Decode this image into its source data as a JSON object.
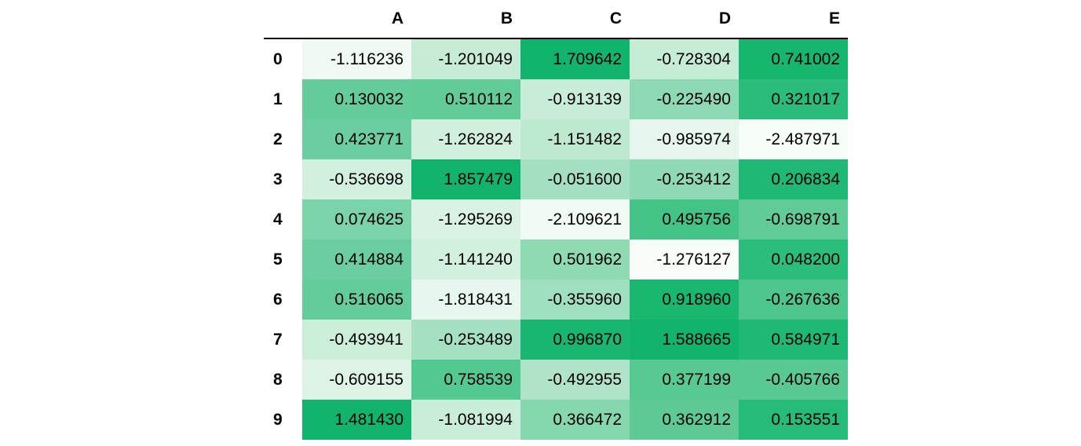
{
  "table": {
    "columns": [
      "A",
      "B",
      "C",
      "D",
      "E"
    ],
    "index": [
      "0",
      "1",
      "2",
      "3",
      "4",
      "5",
      "6",
      "7",
      "8",
      "9"
    ],
    "rows": [
      [
        "-1.116236",
        "-1.201049",
        "1.709642",
        "-0.728304",
        "0.741002"
      ],
      [
        "0.130032",
        "0.510112",
        "-0.913139",
        "-0.225490",
        "0.321017"
      ],
      [
        "0.423771",
        "-1.262824",
        "-1.151482",
        "-0.985974",
        "-2.487971"
      ],
      [
        "-0.536698",
        "1.857479",
        "-0.051600",
        "-0.253412",
        "0.206834"
      ],
      [
        "0.074625",
        "-1.295269",
        "-2.109621",
        "0.495756",
        "-0.698791"
      ],
      [
        "0.414884",
        "-1.141240",
        "0.501962",
        "-1.276127",
        "0.048200"
      ],
      [
        "0.516065",
        "-1.818431",
        "-0.355960",
        "0.918960",
        "-0.267636"
      ],
      [
        "-0.493941",
        "-0.253489",
        "0.996870",
        "1.588665",
        "0.584971"
      ],
      [
        "-0.609155",
        "0.758539",
        "-0.492955",
        "0.377199",
        "-0.405766"
      ],
      [
        "1.481430",
        "-1.081994",
        "0.366472",
        "0.362912",
        "0.153551"
      ]
    ],
    "cell_colors": [
      [
        "#f0f9f3",
        "#c6ecd6",
        "#12b46d",
        "#c5ecd5",
        "#17b66f"
      ],
      [
        "#63cc9a",
        "#62cc99",
        "#c7ecd7",
        "#8dd9b3",
        "#29bc7b"
      ],
      [
        "#6acea0",
        "#d0efdd",
        "#bde9cf",
        "#e6f6ec",
        "#f6fcf8"
      ],
      [
        "#d1f0de",
        "#12b46d",
        "#a3e0c1",
        "#8fdab5",
        "#1fb975"
      ],
      [
        "#7ad3a9",
        "#daf2e4",
        "#f1faf4",
        "#43c385",
        "#61cb98"
      ],
      [
        "#6acea0",
        "#d2f0de",
        "#8ddab3",
        "#f7fcf9",
        "#2abd7b"
      ],
      [
        "#63cc9a",
        "#e7f7ed",
        "#9edfbf",
        "#19b770",
        "#4cc68c"
      ],
      [
        "#cbeed9",
        "#a4e1c2",
        "#18b670",
        "#12b46d",
        "#1eb974"
      ],
      [
        "#dcf3e5",
        "#54c891",
        "#afe4c8",
        "#59c994",
        "#59c994"
      ],
      [
        "#12b46d",
        "#c8edd8",
        "#85d7ae",
        "#5dca96",
        "#26bb79"
      ]
    ]
  }
}
